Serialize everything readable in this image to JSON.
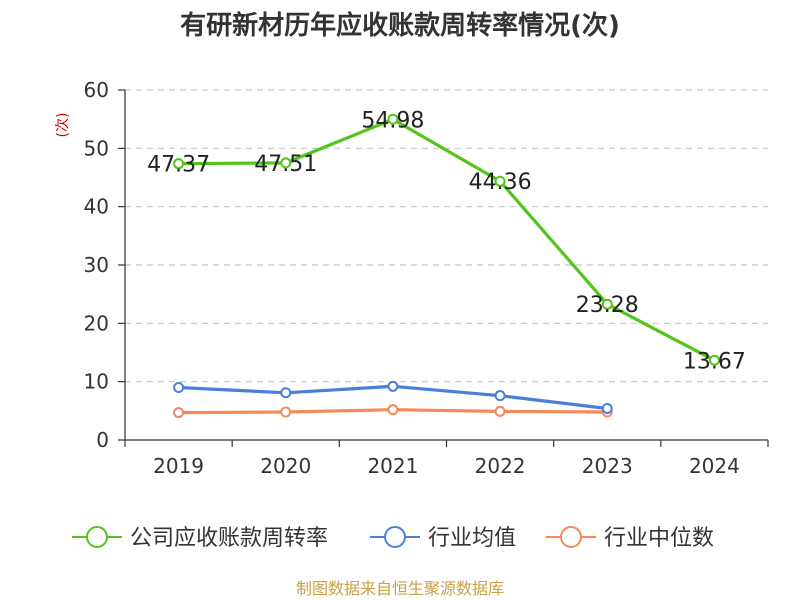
{
  "chart_data": {
    "type": "line",
    "title": "有研新材历年应收账款周转率情况(次)",
    "ylabel": "(次)",
    "xlabel": "",
    "categories": [
      "2019",
      "2020",
      "2021",
      "2022",
      "2023",
      "2024"
    ],
    "ylim": [
      0,
      60
    ],
    "yticks": [
      0,
      10,
      20,
      30,
      40,
      50,
      60
    ],
    "grid": true,
    "legend_position": "bottom",
    "series": [
      {
        "name": "公司应收账款周转率",
        "color": "#52c41a",
        "values": [
          47.37,
          47.51,
          54.98,
          44.36,
          23.28,
          13.67
        ],
        "labels": [
          "47.37",
          "47.51",
          "54.98",
          "44.36",
          "23.28",
          "13.67"
        ]
      },
      {
        "name": "行业均值",
        "color": "#4a7fd8",
        "values": [
          9.0,
          8.1,
          9.2,
          7.6,
          5.4,
          null
        ]
      },
      {
        "name": "行业中位数",
        "color": "#f5895a",
        "values": [
          4.7,
          4.8,
          5.2,
          4.9,
          4.8,
          null
        ]
      }
    ]
  },
  "source": "制图数据来自恒生聚源数据库"
}
